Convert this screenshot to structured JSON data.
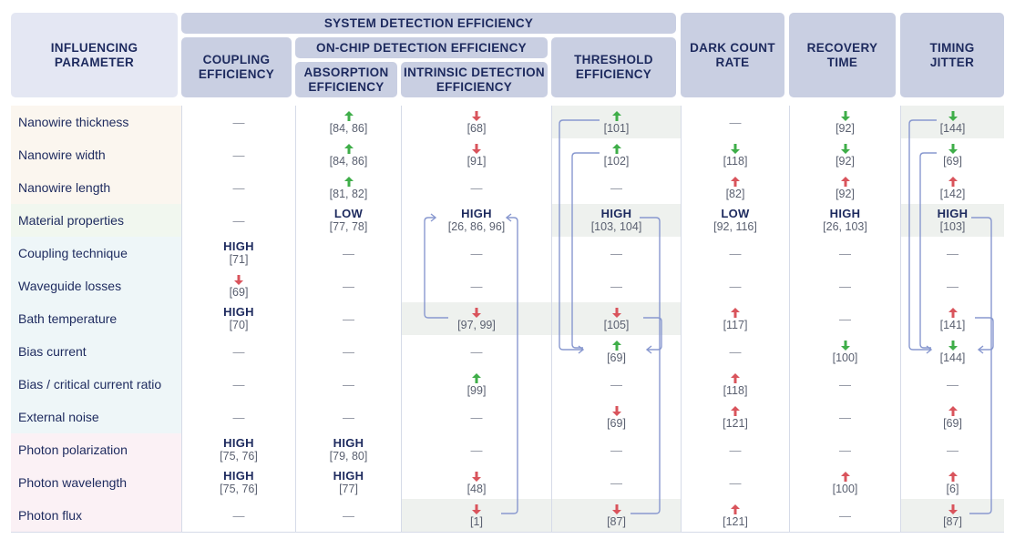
{
  "headers": {
    "param": "INFLUENCING\nPARAMETER",
    "sde": "SYSTEM DETECTION EFFICIENCY",
    "coupling": "COUPLING\nEFFICIENCY",
    "ocde": "ON-CHIP DETECTION EFFICIENCY",
    "absorption": "ABSORPTION\nEFFICIENCY",
    "intrinsic": "INTRINSIC DETECTION\nEFFICIENCY",
    "threshold": "THRESHOLD\nEFFICIENCY",
    "dark": "DARK COUNT\nRATE",
    "recovery": "RECOVERY\nTIME",
    "jitter": "TIMING\nJITTER"
  },
  "colors": {
    "header_bg": "#c9cfe2",
    "header_text": "#1d2a5e",
    "up_arrow": "#3fae49",
    "down_arrow": "#d9545c",
    "connector": "#8898cf",
    "highlight": "#eef1ee"
  },
  "rows": [
    {
      "label": "Nanowire thickness",
      "cells": [
        {
          "t": "dash"
        },
        {
          "t": "arrow",
          "dir": "up",
          "color": "green",
          "ref": "[84, 86]"
        },
        {
          "t": "arrow",
          "dir": "down",
          "color": "red",
          "ref": "[68]"
        },
        {
          "t": "arrow",
          "dir": "up",
          "color": "green",
          "ref": "[101]"
        },
        {
          "t": "dash"
        },
        {
          "t": "arrow",
          "dir": "down",
          "color": "green",
          "ref": "[92]"
        },
        {
          "t": "arrow",
          "dir": "down",
          "color": "green",
          "ref": "[144]"
        }
      ]
    },
    {
      "label": "Nanowire width",
      "cells": [
        {
          "t": "dash"
        },
        {
          "t": "arrow",
          "dir": "up",
          "color": "green",
          "ref": "[84, 86]"
        },
        {
          "t": "arrow",
          "dir": "down",
          "color": "red",
          "ref": "[91]"
        },
        {
          "t": "arrow",
          "dir": "up",
          "color": "green",
          "ref": "[102]"
        },
        {
          "t": "arrow",
          "dir": "down",
          "color": "green",
          "ref": "[118]"
        },
        {
          "t": "arrow",
          "dir": "down",
          "color": "green",
          "ref": "[92]"
        },
        {
          "t": "arrow",
          "dir": "down",
          "color": "green",
          "ref": "[69]"
        }
      ]
    },
    {
      "label": "Nanowire length",
      "cells": [
        {
          "t": "dash"
        },
        {
          "t": "arrow",
          "dir": "up",
          "color": "green",
          "ref": "[81, 82]"
        },
        {
          "t": "dash"
        },
        {
          "t": "dash"
        },
        {
          "t": "arrow",
          "dir": "up",
          "color": "red",
          "ref": "[82]"
        },
        {
          "t": "arrow",
          "dir": "up",
          "color": "red",
          "ref": "[92]"
        },
        {
          "t": "arrow",
          "dir": "up",
          "color": "red",
          "ref": "[142]"
        }
      ]
    },
    {
      "label": "Material properties",
      "cells": [
        {
          "t": "dash"
        },
        {
          "t": "level",
          "text": "LOW",
          "ref": "[77, 78]"
        },
        {
          "t": "level",
          "text": "HIGH",
          "ref": "[26, 86, 96]"
        },
        {
          "t": "level",
          "text": "HIGH",
          "ref": "[103, 104]"
        },
        {
          "t": "level",
          "text": "LOW",
          "ref": "[92, 116]"
        },
        {
          "t": "level",
          "text": "HIGH",
          "ref": "[26, 103]"
        },
        {
          "t": "level",
          "text": "HIGH",
          "ref": "[103]"
        }
      ]
    },
    {
      "label": "Coupling technique",
      "cells": [
        {
          "t": "level",
          "text": "HIGH",
          "ref": "[71]"
        },
        {
          "t": "dash"
        },
        {
          "t": "dash"
        },
        {
          "t": "dash"
        },
        {
          "t": "dash"
        },
        {
          "t": "dash"
        },
        {
          "t": "dash"
        }
      ]
    },
    {
      "label": "Waveguide losses",
      "cells": [
        {
          "t": "arrow",
          "dir": "down",
          "color": "red",
          "ref": "[69]"
        },
        {
          "t": "dash"
        },
        {
          "t": "dash"
        },
        {
          "t": "dash"
        },
        {
          "t": "dash"
        },
        {
          "t": "dash"
        },
        {
          "t": "dash"
        }
      ]
    },
    {
      "label": "Bath temperature",
      "cells": [
        {
          "t": "level",
          "text": "HIGH",
          "ref": "[70]"
        },
        {
          "t": "dash"
        },
        {
          "t": "arrow",
          "dir": "down",
          "color": "red",
          "ref": "[97, 99]"
        },
        {
          "t": "arrow",
          "dir": "down",
          "color": "red",
          "ref": "[105]"
        },
        {
          "t": "arrow",
          "dir": "up",
          "color": "red",
          "ref": "[117]"
        },
        {
          "t": "dash"
        },
        {
          "t": "arrow",
          "dir": "up",
          "color": "red",
          "ref": "[141]"
        }
      ]
    },
    {
      "label": "Bias current",
      "cells": [
        {
          "t": "dash"
        },
        {
          "t": "dash"
        },
        {
          "t": "dash"
        },
        {
          "t": "arrow",
          "dir": "up",
          "color": "green",
          "ref": "[69]"
        },
        {
          "t": "dash"
        },
        {
          "t": "arrow",
          "dir": "down",
          "color": "green",
          "ref": "[100]"
        },
        {
          "t": "arrow",
          "dir": "down",
          "color": "green",
          "ref": "[144]"
        }
      ]
    },
    {
      "label": "Bias / critical current ratio",
      "cells": [
        {
          "t": "dash"
        },
        {
          "t": "dash"
        },
        {
          "t": "arrow",
          "dir": "up",
          "color": "green",
          "ref": "[99]"
        },
        {
          "t": "dash"
        },
        {
          "t": "arrow",
          "dir": "up",
          "color": "red",
          "ref": "[118]"
        },
        {
          "t": "dash"
        },
        {
          "t": "dash"
        }
      ]
    },
    {
      "label": "External noise",
      "cells": [
        {
          "t": "dash"
        },
        {
          "t": "dash"
        },
        {
          "t": "dash"
        },
        {
          "t": "arrow",
          "dir": "down",
          "color": "red",
          "ref": "[69]"
        },
        {
          "t": "arrow",
          "dir": "up",
          "color": "red",
          "ref": "[121]"
        },
        {
          "t": "dash"
        },
        {
          "t": "arrow",
          "dir": "up",
          "color": "red",
          "ref": "[69]"
        }
      ]
    },
    {
      "label": "Photon polarization",
      "cells": [
        {
          "t": "level",
          "text": "HIGH",
          "ref": "[75, 76]"
        },
        {
          "t": "level",
          "text": "HIGH",
          "ref": "[79, 80]"
        },
        {
          "t": "dash"
        },
        {
          "t": "dash"
        },
        {
          "t": "dash"
        },
        {
          "t": "dash"
        },
        {
          "t": "dash"
        }
      ]
    },
    {
      "label": "Photon wavelength",
      "cells": [
        {
          "t": "level",
          "text": "HIGH",
          "ref": "[75, 76]"
        },
        {
          "t": "level",
          "text": "HIGH",
          "ref": "[77]"
        },
        {
          "t": "arrow",
          "dir": "down",
          "color": "red",
          "ref": "[48]"
        },
        {
          "t": "dash"
        },
        {
          "t": "dash"
        },
        {
          "t": "arrow",
          "dir": "up",
          "color": "red",
          "ref": "[100]"
        },
        {
          "t": "arrow",
          "dir": "up",
          "color": "red",
          "ref": "[6]"
        }
      ]
    },
    {
      "label": "Photon flux",
      "cells": [
        {
          "t": "dash"
        },
        {
          "t": "dash"
        },
        {
          "t": "arrow",
          "dir": "down",
          "color": "red",
          "ref": "[1]"
        },
        {
          "t": "arrow",
          "dir": "down",
          "color": "red",
          "ref": "[87]"
        },
        {
          "t": "arrow",
          "dir": "up",
          "color": "red",
          "ref": "[121]"
        },
        {
          "t": "dash"
        },
        {
          "t": "arrow",
          "dir": "down",
          "color": "red",
          "ref": "[87]"
        }
      ]
    }
  ]
}
